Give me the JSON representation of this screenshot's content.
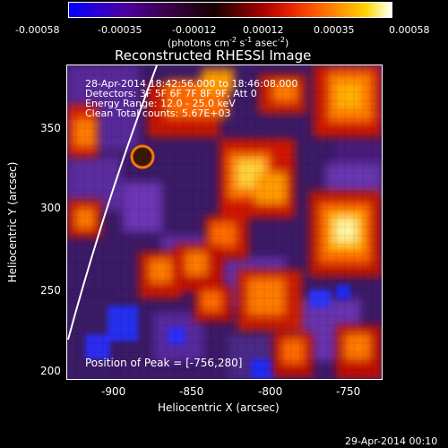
{
  "colorbar": {
    "tick_labels": [
      "-0.00058",
      "-0.00035",
      "-0.00012",
      "0.00012",
      "0.00035",
      "0.00058"
    ],
    "units_line": "(photons cm",
    "units_sup1": "-2",
    "units_mid1": " s",
    "units_sup2": "-1",
    "units_mid2": " asec",
    "units_sup3": "-2",
    "units_close": ")"
  },
  "plot": {
    "title": "Reconstructed RHESSI Image",
    "info_lines": [
      "28-Apr-2014 18:42:56.000 to 18:46:08.000",
      "Detectors: 3F 5F 6F 7F 8F 9F, Att 0",
      "Energy Range: 12.0 - 25.0 keV",
      "Clean     Total counts: 5.67E+03"
    ],
    "peak_label": "Position of Peak = [-756,280]",
    "x_axis_label": "Heliocentric X (arcsec)",
    "y_axis_label": "Heliocentric Y (arcsec)",
    "x_ticks": [
      "-900",
      "-850",
      "-800",
      "-750"
    ],
    "y_ticks": [
      "350",
      "300",
      "250",
      "200"
    ],
    "footer_timestamp": "29-Apr-2014 00:10",
    "colors": {
      "purple": "#5a2a9c",
      "blue": "#1f2cff",
      "dark_red": "#7a0000",
      "red": "#d81b00",
      "orange": "#ff7a00",
      "yellow": "#ffd23a",
      "white": "#ffffff"
    }
  }
}
